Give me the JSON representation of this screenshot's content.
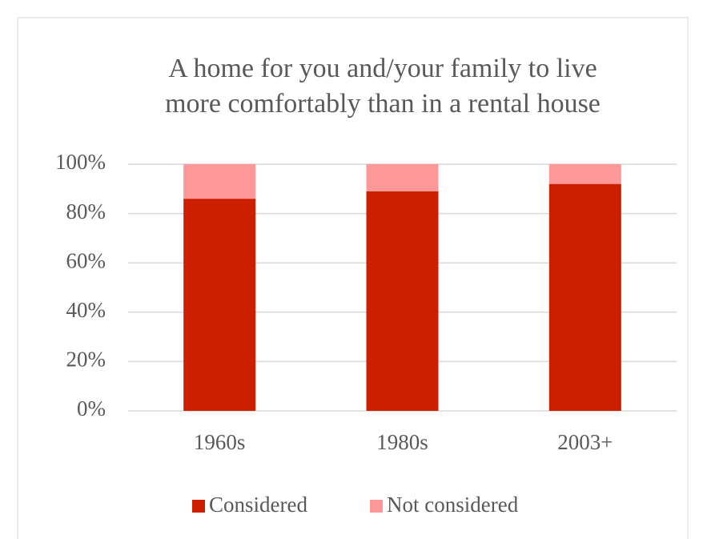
{
  "chart_data": {
    "type": "stacked_bar",
    "title": [
      "A home for you and/your family to live",
      "more comfortably than in a rental house"
    ],
    "categories": [
      "1960s",
      "1980s",
      "2003+"
    ],
    "series": [
      {
        "name": "Considered",
        "color": "#cc1f00",
        "values": [
          86,
          89,
          92
        ]
      },
      {
        "name": "Not considered",
        "color": "#ff9999",
        "values": [
          14,
          11,
          8
        ]
      }
    ],
    "ylim": [
      0,
      100
    ],
    "yticks": [
      {
        "value": 0,
        "label": "0%"
      },
      {
        "value": 20,
        "label": "20%"
      },
      {
        "value": 40,
        "label": "40%"
      },
      {
        "value": 60,
        "label": "60%"
      },
      {
        "value": 80,
        "label": "80%"
      },
      {
        "value": 100,
        "label": "100%"
      }
    ],
    "grid": true,
    "legend": "bottom"
  }
}
